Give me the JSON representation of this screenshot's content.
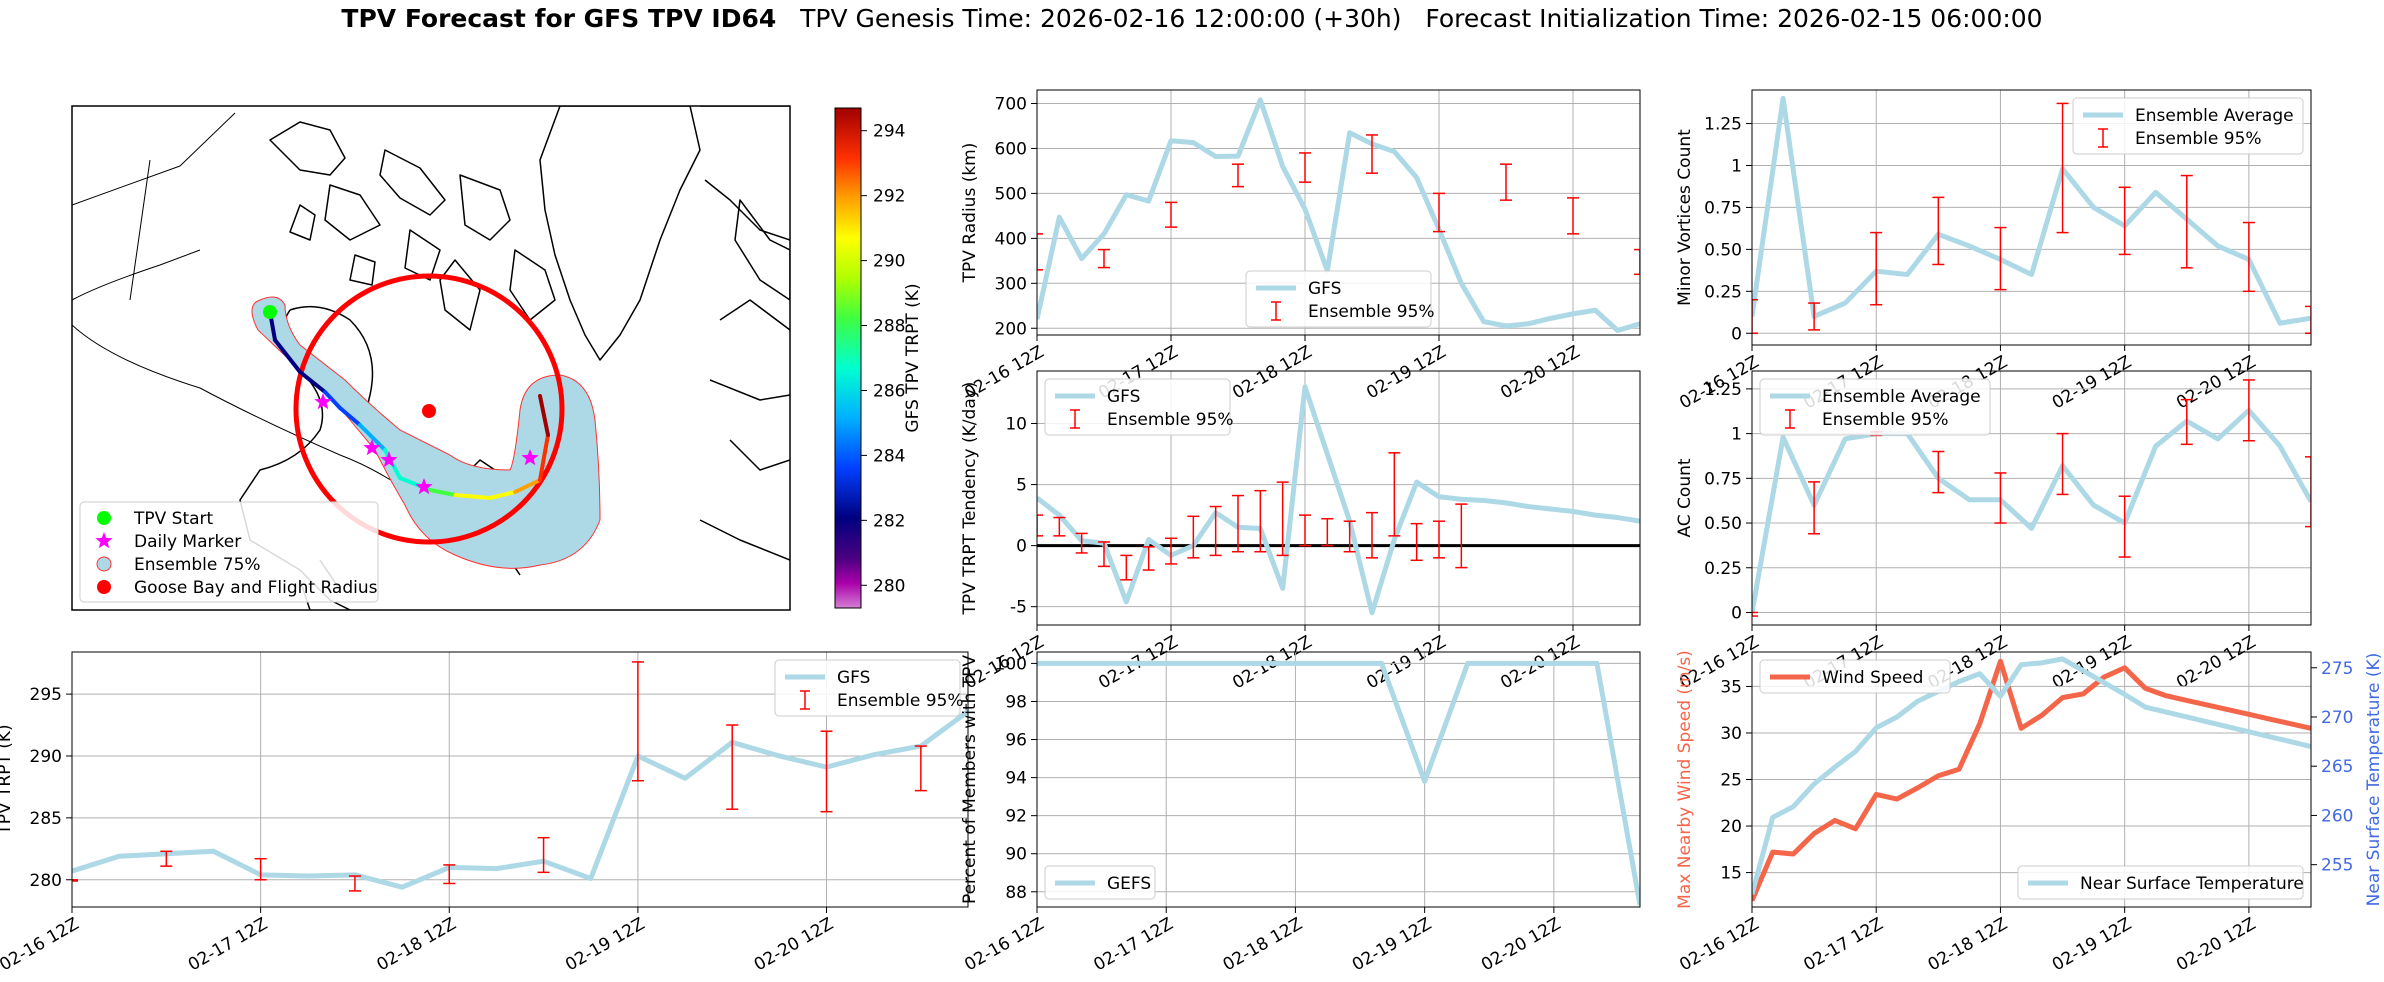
{
  "suptitle": {
    "bold": "TPV Forecast for GFS TPV ID64",
    "genesis": "TPV Genesis Time: 2026-02-16 12:00:00 (+30h)",
    "init": "Forecast Initialization Time: 2026-02-15 06:00:00"
  },
  "colors": {
    "gfs_line": "#add8e6",
    "ensemble_err": "#ff0000",
    "wind": "#f4664a",
    "temp_axis": "#4169e1",
    "tpv_start": "#00ff00",
    "daily_marker": "#ff00ff",
    "ensemble75_fill": "#add8e6",
    "goose_bay": "#ff0000"
  },
  "chart_data": [
    {
      "id": "map",
      "type": "map",
      "legend": [
        "TPV Start",
        "Daily Marker",
        "Ensemble 75%",
        "Goose Bay and Flight Radius"
      ],
      "legend_placement": "lower-left",
      "colorbar": {
        "label": "GFS TPV TRPT (K)",
        "ticks": [
          280,
          282,
          284,
          286,
          288,
          290,
          292,
          294
        ],
        "range": [
          279.3,
          294.7
        ],
        "colormap": "gist_ncar"
      },
      "track_trpt": [
        281,
        281.5,
        282,
        282.2,
        283,
        284,
        285.5,
        286,
        288,
        289.5,
        290.5,
        291.5,
        292.5,
        293.5,
        294
      ]
    },
    {
      "id": "tpv_radius",
      "type": "line",
      "xlabel": "",
      "ylabel": "TPV Radius (km)",
      "xlim": [
        0,
        27
      ],
      "ylim": [
        185,
        730
      ],
      "yticks": [
        200,
        300,
        400,
        500,
        600,
        700
      ],
      "xticks": [
        0,
        6,
        12,
        18,
        24
      ],
      "xticklabels": [
        "02-16 12Z",
        "02-17 12Z",
        "02-18 12Z",
        "02-19 12Z",
        "02-20 12Z"
      ],
      "legend": [
        "GFS",
        "Ensemble 95%"
      ],
      "legend_placement": "lower-center",
      "series": [
        {
          "name": "GFS",
          "x": [
            0,
            1,
            2,
            3,
            4,
            5,
            6,
            7,
            8,
            9,
            10,
            11,
            12,
            13,
            14,
            15,
            16,
            17,
            18,
            19,
            20,
            21,
            22,
            23,
            24,
            25,
            26,
            27
          ],
          "values": [
            220,
            447,
            355,
            410,
            497,
            483,
            617,
            613,
            582,
            583,
            708,
            560,
            465,
            328,
            635,
            610,
            593,
            535,
            420,
            300,
            215,
            205,
            210,
            222,
            232,
            240,
            195,
            210
          ]
        }
      ],
      "errorbars": [
        {
          "x": 0,
          "low": 330,
          "high": 410
        },
        {
          "x": 3,
          "low": 335,
          "high": 375
        },
        {
          "x": 6,
          "low": 425,
          "high": 480
        },
        {
          "x": 9,
          "low": 515,
          "high": 565
        },
        {
          "x": 12,
          "low": 525,
          "high": 590
        },
        {
          "x": 15,
          "low": 545,
          "high": 630
        },
        {
          "x": 18,
          "low": 415,
          "high": 500
        },
        {
          "x": 21,
          "low": 485,
          "high": 565
        },
        {
          "x": 24,
          "low": 410,
          "high": 490
        },
        {
          "x": 27,
          "low": 320,
          "high": 375
        }
      ]
    },
    {
      "id": "minor_vortices",
      "type": "line",
      "xlabel": "",
      "ylabel": "Minor Vortices Count",
      "xlim": [
        0,
        18
      ],
      "ylim": [
        -0.07,
        1.45
      ],
      "yticks": [
        0.0,
        0.25,
        0.5,
        0.75,
        1.0,
        1.25
      ],
      "xticks": [
        0,
        4,
        8,
        12,
        16
      ],
      "xticklabels": [
        "02-16 12Z",
        "02-17 12Z",
        "02-18 12Z",
        "02-19 12Z",
        "02-20 12Z"
      ],
      "legend": [
        "Ensemble Average",
        "Ensemble 95%"
      ],
      "legend_placement": "upper-right",
      "series": [
        {
          "name": "Ensemble Average",
          "x": [
            0,
            1,
            2,
            3,
            4,
            5,
            6,
            7,
            8,
            9,
            10,
            11,
            12,
            13,
            14,
            15,
            16,
            17,
            18
          ],
          "values": [
            0.1,
            1.4,
            0.1,
            0.18,
            0.37,
            0.35,
            0.59,
            0.52,
            0.44,
            0.35,
            0.98,
            0.75,
            0.64,
            0.84,
            0.68,
            0.52,
            0.44,
            0.06,
            0.09
          ]
        }
      ],
      "errorbars": [
        {
          "x": 0,
          "low": 0.0,
          "high": 0.2
        },
        {
          "x": 2,
          "low": 0.02,
          "high": 0.18
        },
        {
          "x": 4,
          "low": 0.17,
          "high": 0.6
        },
        {
          "x": 6,
          "low": 0.41,
          "high": 0.81
        },
        {
          "x": 8,
          "low": 0.26,
          "high": 0.63
        },
        {
          "x": 10,
          "low": 0.6,
          "high": 1.37
        },
        {
          "x": 12,
          "low": 0.47,
          "high": 0.87
        },
        {
          "x": 14,
          "low": 0.39,
          "high": 0.94
        },
        {
          "x": 16,
          "low": 0.25,
          "high": 0.66
        },
        {
          "x": 18,
          "low": 0.0,
          "high": 0.16
        }
      ]
    },
    {
      "id": "trpt_tendency",
      "type": "line",
      "xlabel": "",
      "ylabel": "TPV TRPT Tendency (K/day)",
      "xlim": [
        0,
        27
      ],
      "ylim": [
        -6.5,
        14.3
      ],
      "yticks": [
        -5,
        0,
        5,
        10
      ],
      "xticks": [
        0,
        6,
        12,
        18,
        24
      ],
      "xticklabels": [
        "02-16 12Z",
        "02-17 12Z",
        "02-18 12Z",
        "02-19 12Z",
        "02-20 12Z"
      ],
      "legend": [
        "GFS",
        "Ensemble 95%"
      ],
      "legend_placement": "upper-left",
      "zero_line": true,
      "series": [
        {
          "name": "GFS",
          "x": [
            0,
            1,
            2,
            3,
            4,
            5,
            6,
            7,
            8,
            9,
            10,
            11,
            12,
            13,
            14,
            15,
            16,
            17,
            18,
            19,
            20,
            21,
            22,
            23,
            24,
            25,
            26,
            27
          ],
          "values": [
            3.9,
            2.5,
            0.4,
            0.2,
            -4.6,
            0.5,
            -0.8,
            0.0,
            2.7,
            1.5,
            1.4,
            -3.5,
            13.0,
            7.5,
            2.0,
            -5.5,
            0.5,
            5.2,
            4.0,
            3.8,
            3.7,
            3.5,
            3.2,
            3.0,
            2.8,
            2.5,
            2.3,
            2.0
          ]
        }
      ],
      "errorbars": [
        {
          "x": 0,
          "low": 0.8,
          "high": 2.5
        },
        {
          "x": 1,
          "low": 0.8,
          "high": 2.3
        },
        {
          "x": 2,
          "low": -0.6,
          "high": 1.0
        },
        {
          "x": 3,
          "low": -1.7,
          "high": 0.3
        },
        {
          "x": 4,
          "low": -2.8,
          "high": -0.8
        },
        {
          "x": 5,
          "low": -2.0,
          "high": -0.1
        },
        {
          "x": 6,
          "low": -1.5,
          "high": 0.6
        },
        {
          "x": 7,
          "low": -1.0,
          "high": 2.4
        },
        {
          "x": 8,
          "low": -0.8,
          "high": 3.2
        },
        {
          "x": 9,
          "low": -0.5,
          "high": 4.1
        },
        {
          "x": 10,
          "low": -0.5,
          "high": 4.5
        },
        {
          "x": 11,
          "low": -0.8,
          "high": 5.2
        },
        {
          "x": 12,
          "low": 0.0,
          "high": 2.5
        },
        {
          "x": 13,
          "low": 0.0,
          "high": 2.2
        },
        {
          "x": 14,
          "low": -0.5,
          "high": 2.0
        },
        {
          "x": 15,
          "low": -1.0,
          "high": 2.7
        },
        {
          "x": 16,
          "low": 0.8,
          "high": 7.6
        },
        {
          "x": 17,
          "low": -1.2,
          "high": 1.8
        },
        {
          "x": 18,
          "low": -1.0,
          "high": 2.0
        },
        {
          "x": 19,
          "low": -1.8,
          "high": 3.4
        }
      ]
    },
    {
      "id": "ac_count",
      "type": "line",
      "xlabel": "",
      "ylabel": "AC Count",
      "xlim": [
        0,
        18
      ],
      "ylim": [
        -0.07,
        1.35
      ],
      "yticks": [
        0.0,
        0.25,
        0.5,
        0.75,
        1.0,
        1.25
      ],
      "xticks": [
        0,
        4,
        8,
        12,
        16
      ],
      "xticklabels": [
        "02-16 12Z",
        "02-17 12Z",
        "02-18 12Z",
        "02-19 12Z",
        "02-20 12Z"
      ],
      "legend": [
        "Ensemble Average",
        "Ensemble 95%"
      ],
      "legend_placement": "upper-left",
      "series": [
        {
          "name": "Ensemble Average",
          "x": [
            0,
            1,
            2,
            3,
            4,
            5,
            6,
            7,
            8,
            9,
            10,
            11,
            12,
            13,
            14,
            15,
            16,
            17,
            18
          ],
          "values": [
            0.0,
            0.98,
            0.6,
            0.97,
            1.0,
            1.0,
            0.75,
            0.63,
            0.63,
            0.47,
            0.82,
            0.6,
            0.5,
            0.93,
            1.07,
            0.97,
            1.13,
            0.93,
            0.62
          ]
        }
      ],
      "errorbars": [
        {
          "x": 0,
          "low": -0.02,
          "high": 0.0
        },
        {
          "x": 2,
          "low": 0.44,
          "high": 0.73
        },
        {
          "x": 4,
          "low": 0.99,
          "high": 1.01
        },
        {
          "x": 6,
          "low": 0.67,
          "high": 0.9
        },
        {
          "x": 8,
          "low": 0.5,
          "high": 0.78
        },
        {
          "x": 10,
          "low": 0.66,
          "high": 1.0
        },
        {
          "x": 12,
          "low": 0.31,
          "high": 0.65
        },
        {
          "x": 14,
          "low": 0.94,
          "high": 1.19
        },
        {
          "x": 16,
          "low": 0.96,
          "high": 1.3
        },
        {
          "x": 18,
          "low": 0.48,
          "high": 0.87
        }
      ]
    },
    {
      "id": "tpv_trpt",
      "type": "line",
      "xlabel": "",
      "ylabel": "TPV TRPT (K)",
      "xlim": [
        0,
        19
      ],
      "ylim": [
        277.8,
        298.4
      ],
      "yticks": [
        280,
        285,
        290,
        295
      ],
      "xticks": [
        0,
        4,
        8,
        12,
        16
      ],
      "xticklabels": [
        "02-16 12Z",
        "02-17 12Z",
        "02-18 12Z",
        "02-19 12Z",
        "02-20 12Z"
      ],
      "legend": [
        "GFS",
        "Ensemble 95%"
      ],
      "legend_placement": "upper-right",
      "series": [
        {
          "name": "GFS",
          "x": [
            0,
            1,
            2,
            3,
            4,
            5,
            6,
            7,
            8,
            9,
            10,
            11,
            12,
            13,
            14,
            15,
            16,
            17,
            18,
            19
          ],
          "values": [
            280.7,
            281.9,
            282.1,
            282.3,
            280.4,
            280.3,
            280.4,
            279.4,
            281.0,
            280.9,
            281.5,
            280.1,
            290.0,
            288.2,
            291.1,
            290.0,
            289.1,
            290.1,
            290.8,
            293.6
          ]
        }
      ],
      "errorbars": [
        {
          "x": 0,
          "low": 279.9,
          "high": 280.0
        },
        {
          "x": 2,
          "low": 281.1,
          "high": 282.3
        },
        {
          "x": 4,
          "low": 280.0,
          "high": 281.7
        },
        {
          "x": 6,
          "low": 279.1,
          "high": 280.3
        },
        {
          "x": 8,
          "low": 279.7,
          "high": 281.2
        },
        {
          "x": 10,
          "low": 280.6,
          "high": 283.4
        },
        {
          "x": 12,
          "low": 288.0,
          "high": 297.6
        },
        {
          "x": 14,
          "low": 285.7,
          "high": 292.5
        },
        {
          "x": 16,
          "low": 285.5,
          "high": 292.0
        },
        {
          "x": 18,
          "low": 287.2,
          "high": 290.8
        }
      ]
    },
    {
      "id": "percent_members",
      "type": "line",
      "xlabel": "",
      "ylabel": "Percent of Members with TPV",
      "xlim": [
        0,
        14
      ],
      "ylim": [
        87.2,
        100.6
      ],
      "yticks": [
        88,
        90,
        92,
        94,
        96,
        98,
        100
      ],
      "xticks": [
        0,
        3,
        6,
        9,
        12
      ],
      "xticklabels": [
        "02-16 12Z",
        "02-17 12Z",
        "02-18 12Z",
        "02-19 12Z",
        "02-20 12Z"
      ],
      "legend": [
        "GEFS"
      ],
      "legend_placement": "lower-left",
      "series": [
        {
          "name": "GEFS",
          "x": [
            0,
            1,
            2,
            3,
            4,
            5,
            6,
            7,
            8,
            9,
            10,
            11,
            12,
            13,
            14
          ],
          "values": [
            100,
            100,
            100,
            100,
            100,
            100,
            100,
            100,
            100,
            93.8,
            100,
            100,
            100,
            100,
            87.3
          ]
        }
      ]
    },
    {
      "id": "wind_temp",
      "type": "line",
      "xlabel": "",
      "ylabel": "Max Nearby Wind Speed (m/s)",
      "ylabel_right": "Near Surface Temperature (K)",
      "xlim": [
        0,
        27
      ],
      "ylim": [
        11.3,
        38.7
      ],
      "ylim_right": [
        250.7,
        276.6
      ],
      "yticks": [
        15,
        20,
        25,
        30,
        35
      ],
      "yticks_right": [
        255,
        260,
        265,
        270,
        275
      ],
      "xticks": [
        0,
        6,
        12,
        18,
        24
      ],
      "xticklabels": [
        "02-16 12Z",
        "02-17 12Z",
        "02-18 12Z",
        "02-19 12Z",
        "02-20 12Z"
      ],
      "legend": [
        "Wind Speed"
      ],
      "legend_placement": "upper-left",
      "legend_right": [
        "Near Surface Temperature"
      ],
      "legend_right_placement": "lower-right",
      "series": [
        {
          "name": "Wind Speed",
          "axis": "left",
          "x": [
            0,
            1,
            2,
            3,
            4,
            5,
            6,
            7,
            8,
            9,
            10,
            11,
            12,
            13,
            14,
            15,
            16,
            17,
            18,
            19,
            20,
            21,
            22,
            23,
            24,
            25,
            26,
            27
          ],
          "values": [
            12.0,
            17.2,
            17.0,
            19.2,
            20.6,
            19.7,
            23.4,
            22.9,
            24.1,
            25.4,
            26.1,
            31.0,
            37.7,
            30.5,
            31.9,
            33.8,
            34.2,
            36.0,
            37.0,
            34.8,
            34.0,
            33.5,
            33.0,
            32.5,
            32.0,
            31.5,
            31.0,
            30.5
          ]
        },
        {
          "name": "Near Surface Temperature",
          "axis": "right",
          "x": [
            0,
            1,
            2,
            3,
            4,
            5,
            6,
            7,
            8,
            9,
            10,
            11,
            12,
            13,
            14,
            15,
            16,
            17,
            18,
            19,
            20,
            21,
            22,
            23,
            24,
            25,
            26,
            27
          ],
          "values": [
            252.0,
            259.8,
            260.9,
            263.2,
            264.9,
            266.5,
            268.9,
            270.0,
            271.6,
            272.6,
            273.6,
            274.4,
            272.1,
            275.3,
            275.5,
            275.9,
            274.7,
            273.5,
            272.3,
            271.0,
            270.5,
            270.0,
            269.5,
            269.0,
            268.5,
            268.0,
            267.5,
            267.0
          ]
        }
      ]
    }
  ]
}
